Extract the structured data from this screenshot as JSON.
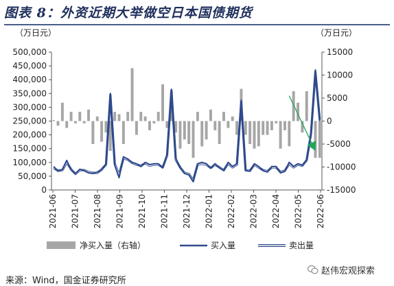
{
  "title": "图表 8：外资近期大举做空日本国债期货",
  "source": "来源：Wind，国金证券研究所",
  "watermark": {
    "icon": "wechat-icon",
    "text": "赵伟宏观探索"
  },
  "colors": {
    "bar": "#a6a6a6",
    "buy": "#2f4a8c",
    "sell_outline": "#2f4a8c",
    "arrow": "#22a55a"
  },
  "chart_data": {
    "type": "bar+line",
    "left_axis": {
      "unit_label": "（万日元）",
      "ylim": [
        0,
        500000
      ],
      "ticks": [
        "0",
        "50,000",
        "100,000",
        "150,000",
        "200,000",
        "250,000",
        "300,000",
        "350,000",
        "400,000",
        "450,000",
        "500,000"
      ]
    },
    "right_axis": {
      "unit_label": "（万日元）",
      "ylim": [
        -15000,
        15000
      ],
      "ticks": [
        "-15000",
        "-10000",
        "-5000",
        "0",
        "5000",
        "10000",
        "15000"
      ]
    },
    "x_ticks": [
      "2021-06",
      "2021-07",
      "2021-08",
      "2021-09",
      "2021-10",
      "2021-11",
      "2021-12",
      "2022-01",
      "2022-02",
      "2022-03",
      "2022-04",
      "2022-05",
      "2022-06"
    ],
    "series": [
      {
        "name": "净买入量（右轴）",
        "kind": "bar",
        "axis": "right",
        "values": [
          200,
          -1000,
          4000,
          -1500,
          2000,
          -500,
          2000,
          -500,
          2500,
          -5000,
          1000,
          -4500,
          -2500,
          -6500,
          2000,
          1500,
          -5000,
          2000,
          11500,
          -3000,
          2000,
          1000,
          -2000,
          -500,
          2000,
          8000,
          -1500,
          6500,
          -2500,
          -6000,
          -4000,
          -5000,
          -8000,
          2000,
          -5500,
          -4000,
          2500,
          -2000,
          -5000,
          2000,
          -1500,
          1000,
          -3000,
          7000,
          -3000,
          -5000,
          -6000,
          -5500,
          -3000,
          -3000,
          -2000,
          -500,
          -6000,
          -2000,
          -5500,
          6500,
          4000,
          -2500,
          6500,
          0,
          -8000,
          -8000
        ]
      },
      {
        "name": "买入量",
        "kind": "line",
        "axis": "left",
        "values": [
          85000,
          68000,
          75000,
          107000,
          72000,
          60000,
          75000,
          70000,
          62000,
          60000,
          65000,
          72000,
          95000,
          350000,
          90000,
          45000,
          120000,
          112000,
          100000,
          95000,
          85000,
          100000,
          92000,
          95000,
          95000,
          80000,
          130000,
          365000,
          115000,
          80000,
          60000,
          55000,
          30000,
          95000,
          100000,
          95000,
          80000,
          95000,
          80000,
          70000,
          100000,
          85000,
          95000,
          325000,
          70000,
          68000,
          95000,
          85000,
          70000,
          65000,
          85000,
          85000,
          62000,
          68000,
          100000,
          85000,
          95000,
          90000,
          110000,
          200000,
          435000,
          250000
        ]
      },
      {
        "name": "卖出量",
        "kind": "line",
        "axis": "left",
        "values": [
          80000,
          70000,
          72000,
          100000,
          75000,
          58000,
          72000,
          72000,
          65000,
          62000,
          62000,
          75000,
          92000,
          345000,
          95000,
          55000,
          115000,
          110000,
          98000,
          92000,
          88000,
          97000,
          88000,
          92000,
          92000,
          82000,
          125000,
          360000,
          110000,
          82000,
          62000,
          58000,
          35000,
          92000,
          95000,
          92000,
          80000,
          92000,
          82000,
          72000,
          96000,
          82000,
          92000,
          318000,
          72000,
          70000,
          92000,
          82000,
          72000,
          68000,
          82000,
          82000,
          65000,
          70000,
          95000,
          82000,
          92000,
          88000,
          108000,
          205000,
          428000,
          255000
        ]
      }
    ],
    "legend": [
      {
        "name": "净买入量（右轴）",
        "swatch": "bar"
      },
      {
        "name": "买入量",
        "swatch": "line"
      },
      {
        "name": "卖出量",
        "swatch": "double-line"
      }
    ],
    "annotation": {
      "kind": "arrow",
      "from_index": 54,
      "from_value": 5500,
      "to_index": 60,
      "to_value": -6500,
      "axis": "right"
    }
  }
}
